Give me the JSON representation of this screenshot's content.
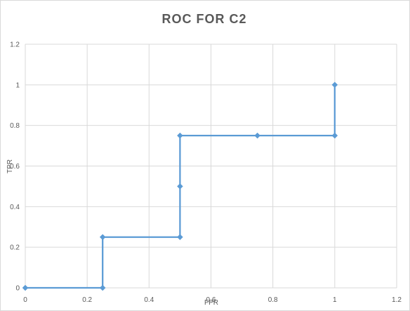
{
  "chart_data": {
    "type": "line",
    "title": "ROC FOR C2",
    "xlabel": "FPR",
    "ylabel": "TPR",
    "xlim": [
      0,
      1.2
    ],
    "ylim": [
      0,
      1.2
    ],
    "x_ticks": [
      "0",
      "0.2",
      "0.4",
      "0.6",
      "0.8",
      "1",
      "1.2"
    ],
    "y_ticks": [
      "0",
      "0.2",
      "0.4",
      "0.6",
      "0.8",
      "1",
      "1.2"
    ],
    "grid": true,
    "legend": "none",
    "series": [
      {
        "color": "#5b9bd5",
        "marker": "diamond",
        "x": [
          0,
          0.25,
          0.25,
          0.5,
          0.5,
          0.5,
          0.75,
          1,
          1
        ],
        "y": [
          0,
          0,
          0.25,
          0.25,
          0.5,
          0.75,
          0.75,
          0.75,
          1
        ]
      }
    ]
  }
}
